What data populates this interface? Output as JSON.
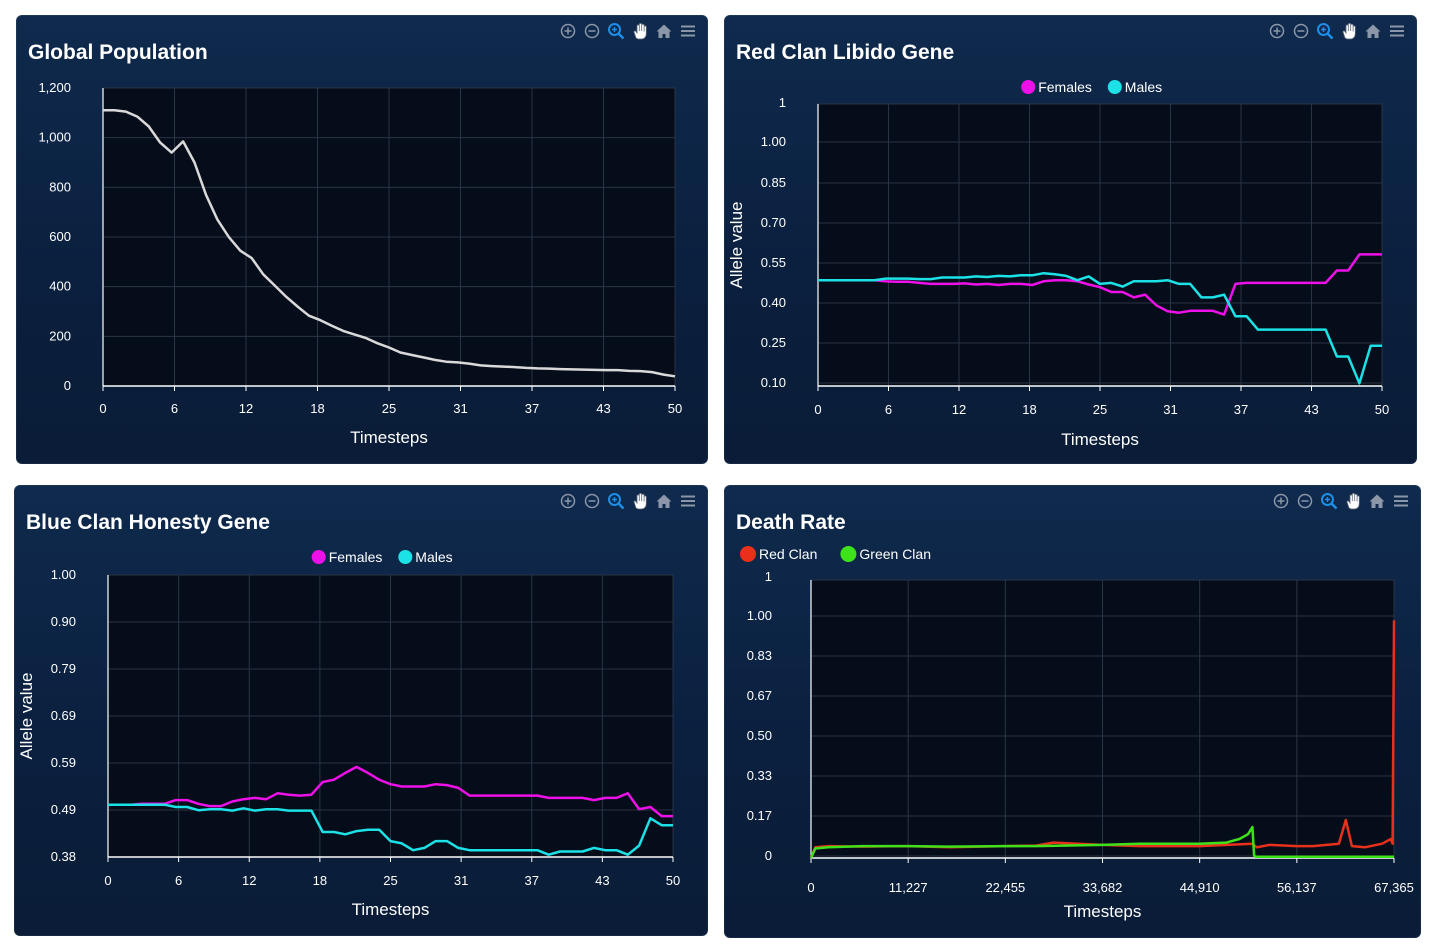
{
  "colors": {
    "plot_bg": "#060d1a",
    "grid": "#2a3446",
    "axis": "#ffffff",
    "white_series": "#d9d9d9",
    "females": "#ee10e8",
    "males": "#1ce1e6",
    "red_clan": "#e8301a",
    "green_clan": "#3ee21a"
  },
  "toolbar_icons": [
    "zoom-in-icon",
    "zoom-out-icon",
    "zoom-selection-icon",
    "pan-hand-icon",
    "home-icon",
    "menu-icon"
  ],
  "chart_data": [
    {
      "type": "line",
      "title": "Global Population",
      "xlabel": "Timesteps",
      "ylabel": "",
      "xlim": [
        0,
        50
      ],
      "ylim": [
        0,
        1200
      ],
      "x_ticks": [
        "0",
        "6",
        "12",
        "18",
        "25",
        "31",
        "37",
        "43",
        "50"
      ],
      "y_ticks": [
        "0",
        "200",
        "400",
        "600",
        "800",
        "1,000",
        "1,200"
      ],
      "legend": [],
      "series": [
        {
          "name": "",
          "color_key": "white_series",
          "x": [
            0,
            1,
            2,
            3,
            4,
            5,
            6,
            7,
            8,
            9,
            10,
            11,
            12,
            13,
            14,
            15,
            16,
            17,
            18,
            19,
            20,
            21,
            22,
            23,
            24,
            25,
            26,
            27,
            28,
            29,
            30,
            31,
            32,
            33,
            34,
            35,
            36,
            37,
            38,
            39,
            40,
            41,
            42,
            43,
            44,
            45,
            46,
            47,
            48,
            49,
            50
          ],
          "values": [
            1110,
            1110,
            1105,
            1085,
            1045,
            980,
            940,
            985,
            900,
            770,
            670,
            600,
            545,
            515,
            450,
            405,
            360,
            320,
            283,
            265,
            243,
            222,
            207,
            193,
            172,
            155,
            135,
            125,
            115,
            105,
            98,
            95,
            90,
            83,
            80,
            78,
            76,
            73,
            71,
            70,
            68,
            67,
            66,
            65,
            64,
            64,
            61,
            60,
            56,
            46,
            39
          ]
        }
      ]
    },
    {
      "type": "line",
      "title": "Red Clan Libido Gene",
      "xlabel": "Timesteps",
      "ylabel": "Allele value",
      "xlim": [
        0,
        50
      ],
      "ylim": [
        0.1,
        1.15
      ],
      "x_ticks": [
        "0",
        "6",
        "12",
        "18",
        "25",
        "31",
        "37",
        "43",
        "50"
      ],
      "y_ticks": [
        "0.10",
        "0.25",
        "0.40",
        "0.55",
        "0.70",
        "0.85",
        "1.00",
        "1"
      ],
      "legend": [
        "Females",
        "Males"
      ],
      "series": [
        {
          "name": "Females",
          "color_key": "females",
          "x": [
            0,
            1,
            2,
            3,
            4,
            5,
            6,
            7,
            8,
            9,
            10,
            11,
            12,
            13,
            14,
            15,
            16,
            17,
            18,
            19,
            20,
            21,
            22,
            23,
            24,
            25,
            26,
            27,
            28,
            29,
            30,
            31,
            32,
            33,
            34,
            35,
            36,
            37,
            38,
            39,
            40,
            41,
            42,
            43,
            44,
            45,
            46,
            47,
            48,
            49,
            50
          ],
          "values": [
            0.494,
            0.494,
            0.494,
            0.494,
            0.494,
            0.494,
            0.49,
            0.488,
            0.488,
            0.484,
            0.48,
            0.48,
            0.48,
            0.482,
            0.478,
            0.48,
            0.476,
            0.48,
            0.48,
            0.476,
            0.49,
            0.494,
            0.494,
            0.49,
            0.478,
            0.468,
            0.45,
            0.45,
            0.43,
            0.44,
            0.4,
            0.378,
            0.373,
            0.38,
            0.38,
            0.38,
            0.366,
            0.48,
            0.484,
            0.484,
            0.484,
            0.484,
            0.484,
            0.484,
            0.484,
            0.484,
            0.53,
            0.53,
            0.59,
            0.59,
            0.59
          ]
        },
        {
          "name": "Males",
          "color_key": "males",
          "x": [
            0,
            1,
            2,
            3,
            4,
            5,
            6,
            7,
            8,
            9,
            10,
            11,
            12,
            13,
            14,
            15,
            16,
            17,
            18,
            19,
            20,
            21,
            22,
            23,
            24,
            25,
            26,
            27,
            28,
            29,
            30,
            31,
            32,
            33,
            34,
            35,
            36,
            37,
            38,
            39,
            40,
            41,
            42,
            43,
            44,
            45,
            46,
            47,
            48,
            49,
            50
          ],
          "values": [
            0.494,
            0.494,
            0.494,
            0.494,
            0.494,
            0.494,
            0.5,
            0.5,
            0.5,
            0.498,
            0.498,
            0.504,
            0.504,
            0.504,
            0.508,
            0.506,
            0.51,
            0.508,
            0.512,
            0.512,
            0.52,
            0.516,
            0.51,
            0.494,
            0.508,
            0.48,
            0.484,
            0.47,
            0.49,
            0.49,
            0.49,
            0.494,
            0.48,
            0.48,
            0.43,
            0.43,
            0.44,
            0.36,
            0.36,
            0.31,
            0.31,
            0.31,
            0.31,
            0.31,
            0.31,
            0.31,
            0.21,
            0.21,
            0.11,
            0.25,
            0.25
          ]
        }
      ]
    },
    {
      "type": "line",
      "title": "Blue Clan Honesty Gene",
      "xlabel": "Timesteps",
      "ylabel": "Allele value",
      "xlim": [
        0,
        50
      ],
      "ylim": [
        0.38,
        1.0
      ],
      "x_ticks": [
        "0",
        "6",
        "12",
        "18",
        "25",
        "31",
        "37",
        "43",
        "50"
      ],
      "y_ticks": [
        "0.38",
        "0.49",
        "0.59",
        "0.69",
        "0.79",
        "0.90",
        "1.00"
      ],
      "legend": [
        "Females",
        "Males"
      ],
      "series": [
        {
          "name": "Females",
          "color_key": "females",
          "x": [
            0,
            1,
            2,
            3,
            4,
            5,
            6,
            7,
            8,
            9,
            10,
            11,
            12,
            13,
            14,
            15,
            16,
            17,
            18,
            19,
            20,
            21,
            22,
            23,
            24,
            25,
            26,
            27,
            28,
            29,
            30,
            31,
            32,
            33,
            34,
            35,
            36,
            37,
            38,
            39,
            40,
            41,
            42,
            43,
            44,
            45,
            46,
            47,
            48,
            49,
            50
          ],
          "values": [
            0.495,
            0.495,
            0.495,
            0.497,
            0.497,
            0.497,
            0.505,
            0.505,
            0.497,
            0.492,
            0.492,
            0.502,
            0.507,
            0.51,
            0.507,
            0.52,
            0.517,
            0.515,
            0.517,
            0.545,
            0.55,
            0.565,
            0.578,
            0.565,
            0.55,
            0.54,
            0.535,
            0.535,
            0.535,
            0.54,
            0.538,
            0.532,
            0.515,
            0.515,
            0.515,
            0.515,
            0.515,
            0.515,
            0.515,
            0.51,
            0.51,
            0.51,
            0.51,
            0.505,
            0.51,
            0.51,
            0.52,
            0.485,
            0.49,
            0.47,
            0.47
          ]
        },
        {
          "name": "Males",
          "color_key": "males",
          "x": [
            0,
            1,
            2,
            3,
            4,
            5,
            6,
            7,
            8,
            9,
            10,
            11,
            12,
            13,
            14,
            15,
            16,
            17,
            18,
            19,
            20,
            21,
            22,
            23,
            24,
            25,
            26,
            27,
            28,
            29,
            30,
            31,
            32,
            33,
            34,
            35,
            36,
            37,
            38,
            39,
            40,
            41,
            42,
            43,
            44,
            45,
            46,
            47,
            48,
            49,
            50
          ],
          "values": [
            0.495,
            0.495,
            0.495,
            0.495,
            0.495,
            0.495,
            0.49,
            0.49,
            0.483,
            0.485,
            0.485,
            0.482,
            0.487,
            0.482,
            0.485,
            0.485,
            0.482,
            0.482,
            0.482,
            0.435,
            0.435,
            0.43,
            0.437,
            0.44,
            0.44,
            0.415,
            0.41,
            0.395,
            0.4,
            0.415,
            0.415,
            0.4,
            0.395,
            0.395,
            0.395,
            0.395,
            0.395,
            0.395,
            0.395,
            0.385,
            0.392,
            0.392,
            0.392,
            0.4,
            0.395,
            0.395,
            0.385,
            0.405,
            0.465,
            0.45,
            0.45
          ]
        }
      ]
    },
    {
      "type": "line",
      "title": "Death Rate",
      "xlabel": "Timesteps",
      "ylabel": "",
      "xlim": [
        0,
        67365
      ],
      "ylim": [
        0,
        1.17
      ],
      "x_ticks": [
        "0",
        "11,227",
        "22,455",
        "33,682",
        "44,910",
        "56,137",
        "67,365"
      ],
      "y_ticks": [
        "0",
        "0.17",
        "0.33",
        "0.50",
        "0.67",
        "0.83",
        "1.00",
        "1"
      ],
      "legend": [
        "Red Clan",
        "Green Clan"
      ],
      "series": [
        {
          "name": "Red Clan",
          "color_key": "red_clan",
          "x": [
            0,
            500,
            2000,
            6000,
            11227,
            16000,
            22455,
            26000,
            28000,
            33682,
            38000,
            44910,
            48000,
            51000,
            51500,
            53000,
            56137,
            58000,
            61000,
            61800,
            62500,
            64000,
            66000,
            67000,
            67200,
            67365
          ],
          "values": [
            0,
            0.045,
            0.05,
            0.048,
            0.05,
            0.045,
            0.05,
            0.052,
            0.065,
            0.055,
            0.05,
            0.05,
            0.055,
            0.06,
            0.045,
            0.055,
            0.05,
            0.05,
            0.06,
            0.16,
            0.05,
            0.045,
            0.06,
            0.08,
            0.06,
            1.0
          ]
        },
        {
          "name": "Green Clan",
          "color_key": "green_clan",
          "x": [
            0,
            500,
            2000,
            6000,
            11227,
            16000,
            22455,
            26000,
            33682,
            38000,
            44910,
            48000,
            49500,
            50500,
            51000,
            51200,
            51400,
            56137,
            61000,
            67365
          ],
          "values": [
            0,
            0.04,
            0.045,
            0.05,
            0.05,
            0.048,
            0.05,
            0.05,
            0.055,
            0.06,
            0.06,
            0.065,
            0.08,
            0.1,
            0.13,
            0.01,
            0.005,
            0.005,
            0.005,
            0.005
          ]
        }
      ]
    }
  ]
}
